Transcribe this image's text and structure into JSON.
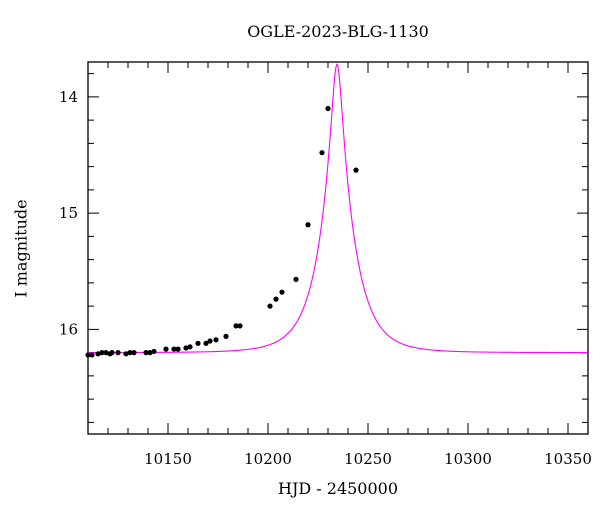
{
  "chart_data": {
    "type": "scatter",
    "title": "OGLE-2023-BLG-1130",
    "xlabel": "HJD - 2450000",
    "ylabel": "I magnitude",
    "xlim": [
      10110,
      10360
    ],
    "ylim": [
      16.9,
      13.7
    ],
    "y_inverted": true,
    "xticks": [
      10150,
      10200,
      10250,
      10300,
      10350
    ],
    "yticks": [
      14,
      15,
      16
    ],
    "grid": false,
    "legend": "none",
    "colors": {
      "model": "#ff00ff",
      "points": "#000000"
    },
    "model": {
      "name": "",
      "t0": 10234.5,
      "tE": 14.0,
      "u0": 0.178,
      "baseline_mag": 16.2,
      "peak_mag": 13.72
    },
    "series": [
      {
        "name": "",
        "x": [
          10110,
          10112,
          10115,
          10117,
          10119,
          10121,
          10122,
          10125,
          10129,
          10131,
          10133,
          10139,
          10141,
          10143,
          10149,
          10153,
          10155,
          10159,
          10161,
          10165,
          10169,
          10171,
          10174,
          10179,
          10184,
          10186,
          10201,
          10204,
          10207,
          10214,
          10220,
          10227,
          10230,
          10244
        ],
        "y": [
          16.22,
          16.22,
          16.21,
          16.2,
          16.2,
          16.21,
          16.2,
          16.2,
          16.21,
          16.2,
          16.2,
          16.2,
          16.2,
          16.19,
          16.17,
          16.17,
          16.17,
          16.16,
          16.15,
          16.12,
          16.12,
          16.1,
          16.09,
          16.06,
          15.97,
          15.97,
          15.8,
          15.74,
          15.68,
          15.57,
          15.1,
          14.48,
          14.1,
          14.63
        ]
      }
    ]
  }
}
